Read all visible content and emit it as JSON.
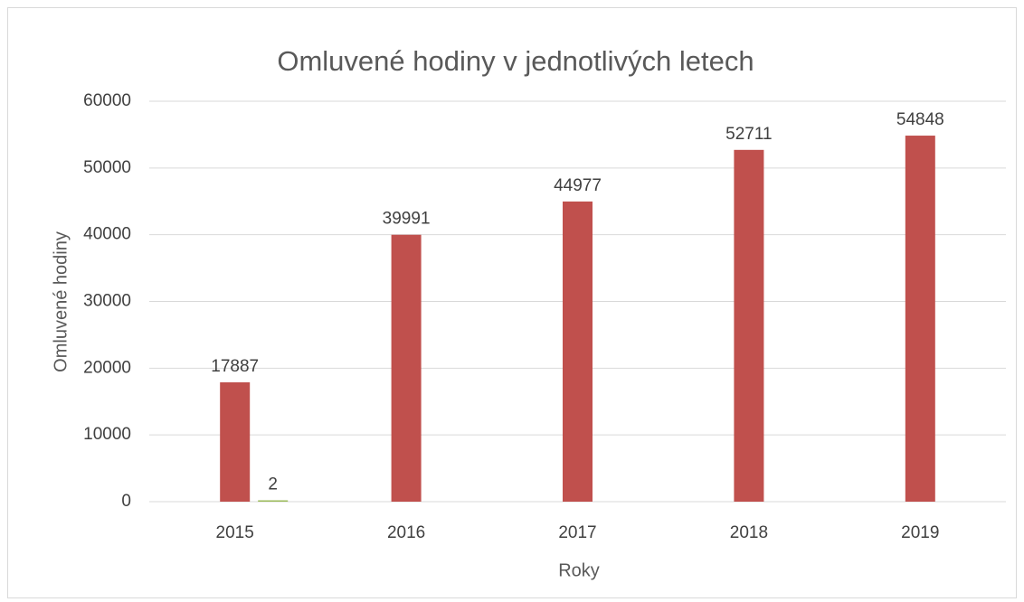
{
  "chart_data": {
    "type": "bar",
    "title": "Omluvené hodiny v jednotlivých letech",
    "x_label": "Roky",
    "y_label": "Omluvené hodiny",
    "categories": [
      "2015",
      "2016",
      "2017",
      "2018",
      "2019"
    ],
    "series": [
      {
        "color": "#c0504d",
        "values": [
          17887,
          39991,
          44977,
          52711,
          54848
        ]
      },
      {
        "color": "#9bbb59",
        "values": [
          2,
          null,
          null,
          null,
          null
        ]
      }
    ],
    "ylim": [
      0,
      60000
    ],
    "yticks": [
      0,
      10000,
      20000,
      30000,
      40000,
      50000,
      60000
    ],
    "grid": true
  }
}
